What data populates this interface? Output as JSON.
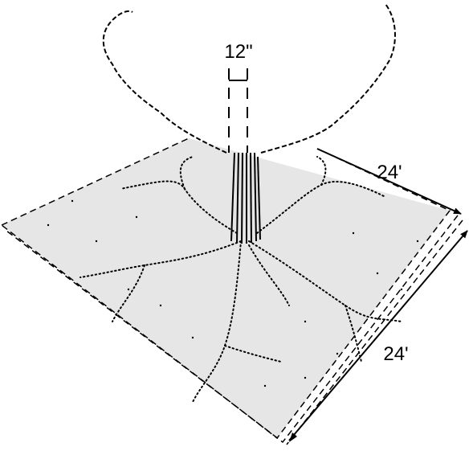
{
  "labels": {
    "trunk_diameter": "12\"",
    "width_top": "24'",
    "width_side": "24'"
  }
}
